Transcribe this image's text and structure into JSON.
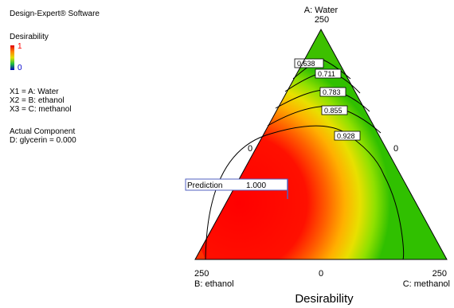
{
  "legend": {
    "software": "Design-Expert® Software",
    "response": "Desirability",
    "scale_high": "1",
    "scale_low": "0",
    "x1": "X1 = A: Water",
    "x2": "X2 = B: ethanol",
    "x3": "X3 = C: methanol",
    "actual_component_heading": "Actual Component",
    "actual_component_value": "D: glycerin = 0.000",
    "high_color": "#ff0000",
    "low_color": "#0000cc"
  },
  "chart_data": {
    "type": "ternary-contour",
    "title": "Desirability",
    "vertices": {
      "top": {
        "label": "A: Water",
        "value": "250"
      },
      "left": {
        "label": "B: ethanol",
        "value": "250"
      },
      "right": {
        "label": "C: methanol",
        "value": "250"
      }
    },
    "edge_zero_labels": {
      "left_edge": "0",
      "right_edge": "0",
      "bottom_edge": "0"
    },
    "contour_levels": [
      "0.638",
      "0.711",
      "0.783",
      "0.855",
      "0.928"
    ],
    "prediction": {
      "label": "Prediction",
      "value": "1.000"
    }
  }
}
